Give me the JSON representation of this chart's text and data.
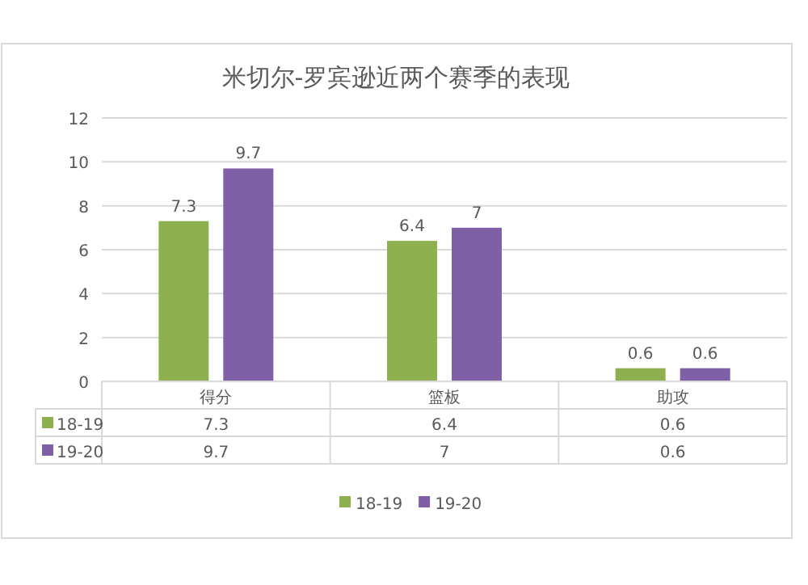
{
  "chart_data": {
    "type": "bar",
    "title": "米切尔-罗宾逊近两个赛季的表现",
    "categories": [
      "得分",
      "篮板",
      "助攻"
    ],
    "series": [
      {
        "name": "18-19",
        "color": "#8fb04e",
        "values": [
          7.3,
          6.4,
          0.6
        ],
        "value_labels": [
          "7.3",
          "6.4",
          "0.6"
        ]
      },
      {
        "name": "19-20",
        "color": "#7f5fa6",
        "values": [
          9.7,
          7,
          0.6
        ],
        "value_labels": [
          "9.7",
          "7",
          "0.6"
        ]
      }
    ],
    "ylim": [
      0,
      12
    ],
    "yticks": [
      0,
      2,
      4,
      6,
      8,
      10,
      12
    ],
    "grid": "y",
    "legend": "bottom",
    "annotations": [
      "7.3",
      "6.4",
      "0.6",
      "9.7",
      "7",
      "0.6"
    ]
  }
}
